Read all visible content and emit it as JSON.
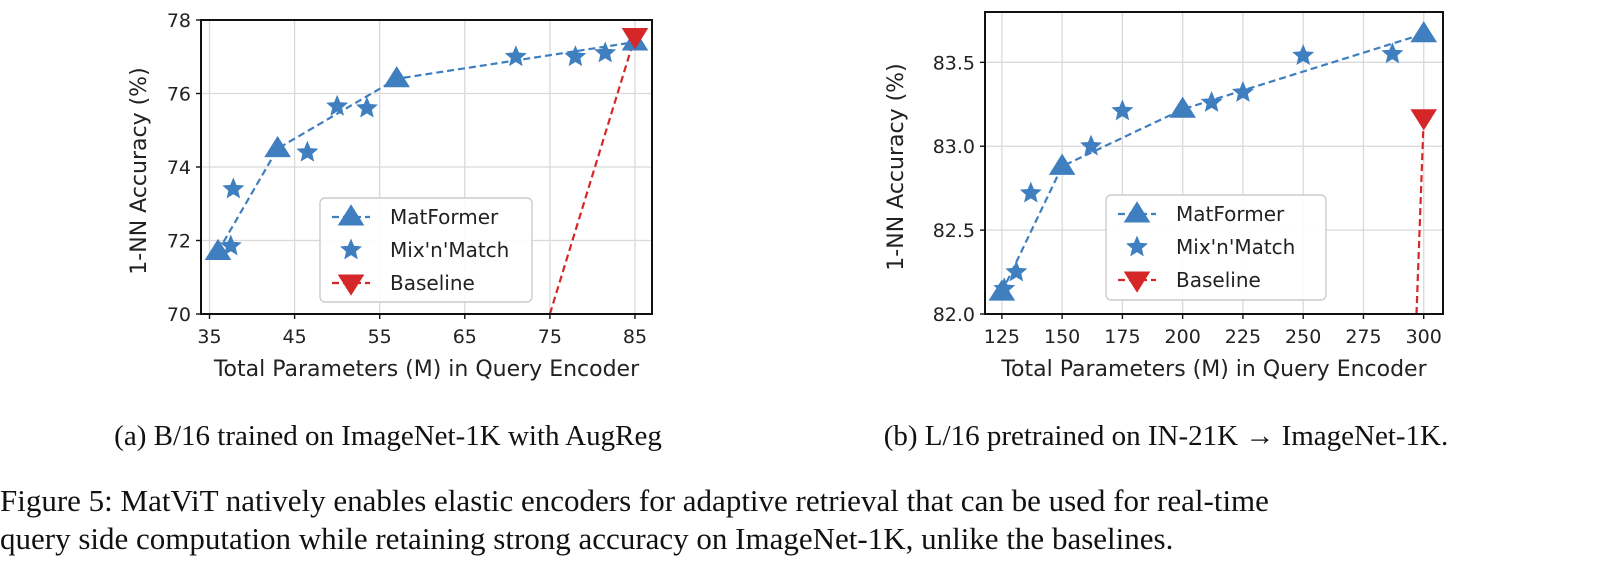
{
  "chart_data": [
    {
      "type": "line",
      "subcaption": "(a) B/16 trained on ImageNet-1K with AugReg",
      "xlabel": "Total Parameters (M) in Query Encoder",
      "ylabel": "1-NN Accuracy (%)",
      "xlim": [
        34,
        87
      ],
      "ylim": [
        70,
        78
      ],
      "xticks": [
        35,
        45,
        55,
        65,
        75,
        85
      ],
      "yticks": [
        70,
        72,
        74,
        76,
        78
      ],
      "grid": true,
      "legend_position": "lower-right",
      "series": [
        {
          "name": "MatFormer",
          "marker": "triangle-up",
          "line": "dashed",
          "color": "#3f7fbf",
          "x": [
            36,
            43,
            57,
            85
          ],
          "y": [
            71.7,
            74.5,
            76.4,
            77.4
          ]
        },
        {
          "name": "Mix'n'Match",
          "marker": "star",
          "line": "none",
          "color": "#3f7fbf",
          "x": [
            37.5,
            37.8,
            46.5,
            50,
            53.5,
            71,
            78,
            81.5
          ],
          "y": [
            71.85,
            73.4,
            74.4,
            75.65,
            75.6,
            77.0,
            77.0,
            77.1
          ]
        },
        {
          "name": "Baseline",
          "marker": "triangle-down",
          "line": "dashed",
          "color": "#d62728",
          "x": [
            75,
            85
          ],
          "y": [
            70,
            77.55
          ]
        }
      ]
    },
    {
      "type": "line",
      "subcaption": "(b) L/16 pretrained on IN-21K → ImageNet-1K.",
      "xlabel": "Total Parameters (M) in Query Encoder",
      "ylabel": "1-NN Accuracy (%)",
      "xlim": [
        118,
        308
      ],
      "ylim": [
        82.0,
        83.8
      ],
      "xticks": [
        125,
        150,
        175,
        200,
        225,
        250,
        275,
        300
      ],
      "yticks": [
        82.0,
        82.5,
        83.0,
        83.5
      ],
      "grid": true,
      "legend_position": "lower-center",
      "series": [
        {
          "name": "MatFormer",
          "marker": "triangle-up",
          "line": "dashed",
          "color": "#3f7fbf",
          "x": [
            125,
            150,
            200,
            300
          ],
          "y": [
            82.13,
            82.88,
            83.22,
            83.67
          ]
        },
        {
          "name": "Mix'n'Match",
          "marker": "star",
          "line": "none",
          "color": "#3f7fbf",
          "x": [
            126,
            131,
            137,
            162,
            175,
            212,
            225,
            250,
            287
          ],
          "y": [
            82.15,
            82.25,
            82.72,
            83.0,
            83.21,
            83.26,
            83.32,
            83.54,
            83.55
          ]
        },
        {
          "name": "Baseline",
          "marker": "triangle-down",
          "line": "dashed",
          "color": "#d62728",
          "x": [
            297,
            300
          ],
          "y": [
            82.0,
            83.17
          ]
        }
      ]
    }
  ],
  "figure_caption": {
    "line1": "Figure 5: MatViT natively enables elastic encoders for adaptive retrieval that can be used for real-time",
    "line2": "query side computation while retaining strong accuracy on ImageNet-1K, unlike the baselines."
  }
}
